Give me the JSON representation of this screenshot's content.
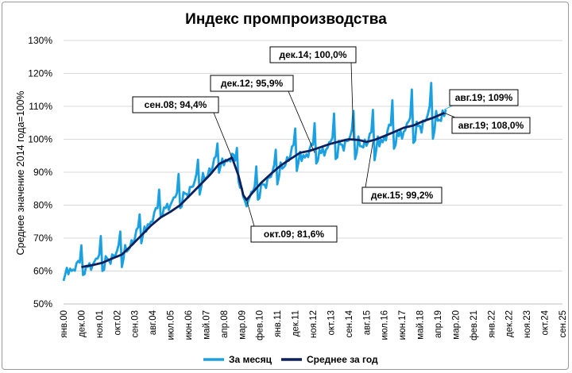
{
  "chart_data": {
    "type": "line",
    "title": "Индекс промпроизводства",
    "ylabel": "Среднее значение 2014 года=100%",
    "ylim": [
      50,
      130
    ],
    "yticks": [
      50,
      60,
      70,
      80,
      90,
      100,
      110,
      120,
      130
    ],
    "ytick_labels": [
      "50%",
      "60%",
      "70%",
      "80%",
      "90%",
      "100%",
      "110%",
      "120%",
      "130%"
    ],
    "x_ticks": [
      {
        "t": 0,
        "label": "янв.00"
      },
      {
        "t": 11,
        "label": "дек.00"
      },
      {
        "t": 22,
        "label": "ноя.01"
      },
      {
        "t": 33,
        "label": "окт.02"
      },
      {
        "t": 44,
        "label": "сен.03"
      },
      {
        "t": 55,
        "label": "авг.04"
      },
      {
        "t": 66,
        "label": "июл.05"
      },
      {
        "t": 77,
        "label": "июн.06"
      },
      {
        "t": 88,
        "label": "май.07"
      },
      {
        "t": 99,
        "label": "апр.08"
      },
      {
        "t": 110,
        "label": "мар.09"
      },
      {
        "t": 121,
        "label": "фев.10"
      },
      {
        "t": 132,
        "label": "янв.11"
      },
      {
        "t": 143,
        "label": "дек.11"
      },
      {
        "t": 154,
        "label": "ноя.12"
      },
      {
        "t": 165,
        "label": "окт.13"
      },
      {
        "t": 176,
        "label": "сен.14"
      },
      {
        "t": 187,
        "label": "авг.15"
      },
      {
        "t": 198,
        "label": "июл.16"
      },
      {
        "t": 209,
        "label": "июн.17"
      },
      {
        "t": 220,
        "label": "май.18"
      },
      {
        "t": 231,
        "label": "апр.19"
      },
      {
        "t": 242,
        "label": "мар.20"
      },
      {
        "t": 253,
        "label": "фев.21"
      },
      {
        "t": 264,
        "label": "янв.22"
      },
      {
        "t": 275,
        "label": "дек.22"
      },
      {
        "t": 286,
        "label": "ноя.23"
      },
      {
        "t": 297,
        "label": "окт.24"
      },
      {
        "t": 308,
        "label": "сен.25"
      }
    ],
    "series": [
      {
        "name": "За месяц",
        "color": "#1ba1e2",
        "anchors": [
          [
            0,
            60.5
          ],
          [
            12,
            61.5
          ],
          [
            24,
            63.5
          ],
          [
            36,
            65.5
          ],
          [
            48,
            72
          ],
          [
            60,
            79
          ],
          [
            72,
            82.5
          ],
          [
            84,
            87.5
          ],
          [
            96,
            93.5
          ],
          [
            104,
            94.5
          ],
          [
            108,
            90
          ],
          [
            112,
            81
          ],
          [
            117,
            83.5
          ],
          [
            124,
            87
          ],
          [
            130,
            89.5
          ],
          [
            140,
            95
          ],
          [
            152,
            96
          ],
          [
            162,
            97.5
          ],
          [
            174,
            99.5
          ],
          [
            180,
            99.5
          ],
          [
            190,
            99
          ],
          [
            198,
            101
          ],
          [
            210,
            103
          ],
          [
            220,
            105
          ],
          [
            228,
            106.5
          ],
          [
            236,
            108.5
          ]
        ],
        "monthly_profile": [
          -3.5,
          -2.5,
          0.5,
          -1,
          -0.5,
          -1.5,
          0,
          -0.5,
          0.5,
          1.5,
          2,
          6.5
        ],
        "end_value": 109
      },
      {
        "name": "Среднее за год",
        "color": "#0d1f5c",
        "points": [
          [
            11,
            61.2
          ],
          [
            18,
            61.8
          ],
          [
            24,
            62.5
          ],
          [
            30,
            63.8
          ],
          [
            36,
            65
          ],
          [
            42,
            67.8
          ],
          [
            48,
            70.8
          ],
          [
            54,
            73.8
          ],
          [
            60,
            76.3
          ],
          [
            66,
            78
          ],
          [
            72,
            80
          ],
          [
            78,
            83
          ],
          [
            84,
            86
          ],
          [
            90,
            89
          ],
          [
            96,
            92.5
          ],
          [
            104,
            94.4
          ],
          [
            108,
            89
          ],
          [
            111,
            83
          ],
          [
            113,
            81.6
          ],
          [
            117,
            84
          ],
          [
            122,
            86.8
          ],
          [
            128,
            89.5
          ],
          [
            134,
            92
          ],
          [
            140,
            94
          ],
          [
            146,
            95.9
          ],
          [
            152,
            96.5
          ],
          [
            158,
            97.5
          ],
          [
            164,
            98.5
          ],
          [
            170,
            99.3
          ],
          [
            176,
            100
          ],
          [
            182,
            99.8
          ],
          [
            187,
            99.2
          ],
          [
            192,
            99.8
          ],
          [
            198,
            101
          ],
          [
            204,
            102.2
          ],
          [
            210,
            103.5
          ],
          [
            216,
            104.2
          ],
          [
            222,
            105.5
          ],
          [
            228,
            106.5
          ],
          [
            235,
            108
          ]
        ]
      }
    ],
    "annotations": [
      {
        "label": "сен.08; 94,4%",
        "t": 104,
        "value": 94.4
      },
      {
        "label": "окт.09; 81,6%",
        "t": 113,
        "value": 81.6
      },
      {
        "label": "дек.12; 95,9%",
        "t": 155,
        "value": 95.9
      },
      {
        "label": "дек.14; 100,0%",
        "t": 179,
        "value": 100.0
      },
      {
        "label": "дек.15; 99,2%",
        "t": 191,
        "value": 99.2
      },
      {
        "label": "авг.19; 109%",
        "t": 235,
        "value": 109
      },
      {
        "label": "авг.19; 108,0%",
        "t": 235,
        "value": 108.0
      }
    ],
    "legend": {
      "position": "bottom",
      "entries": [
        "За месяц",
        "Среднее за год"
      ]
    },
    "grid": true
  }
}
